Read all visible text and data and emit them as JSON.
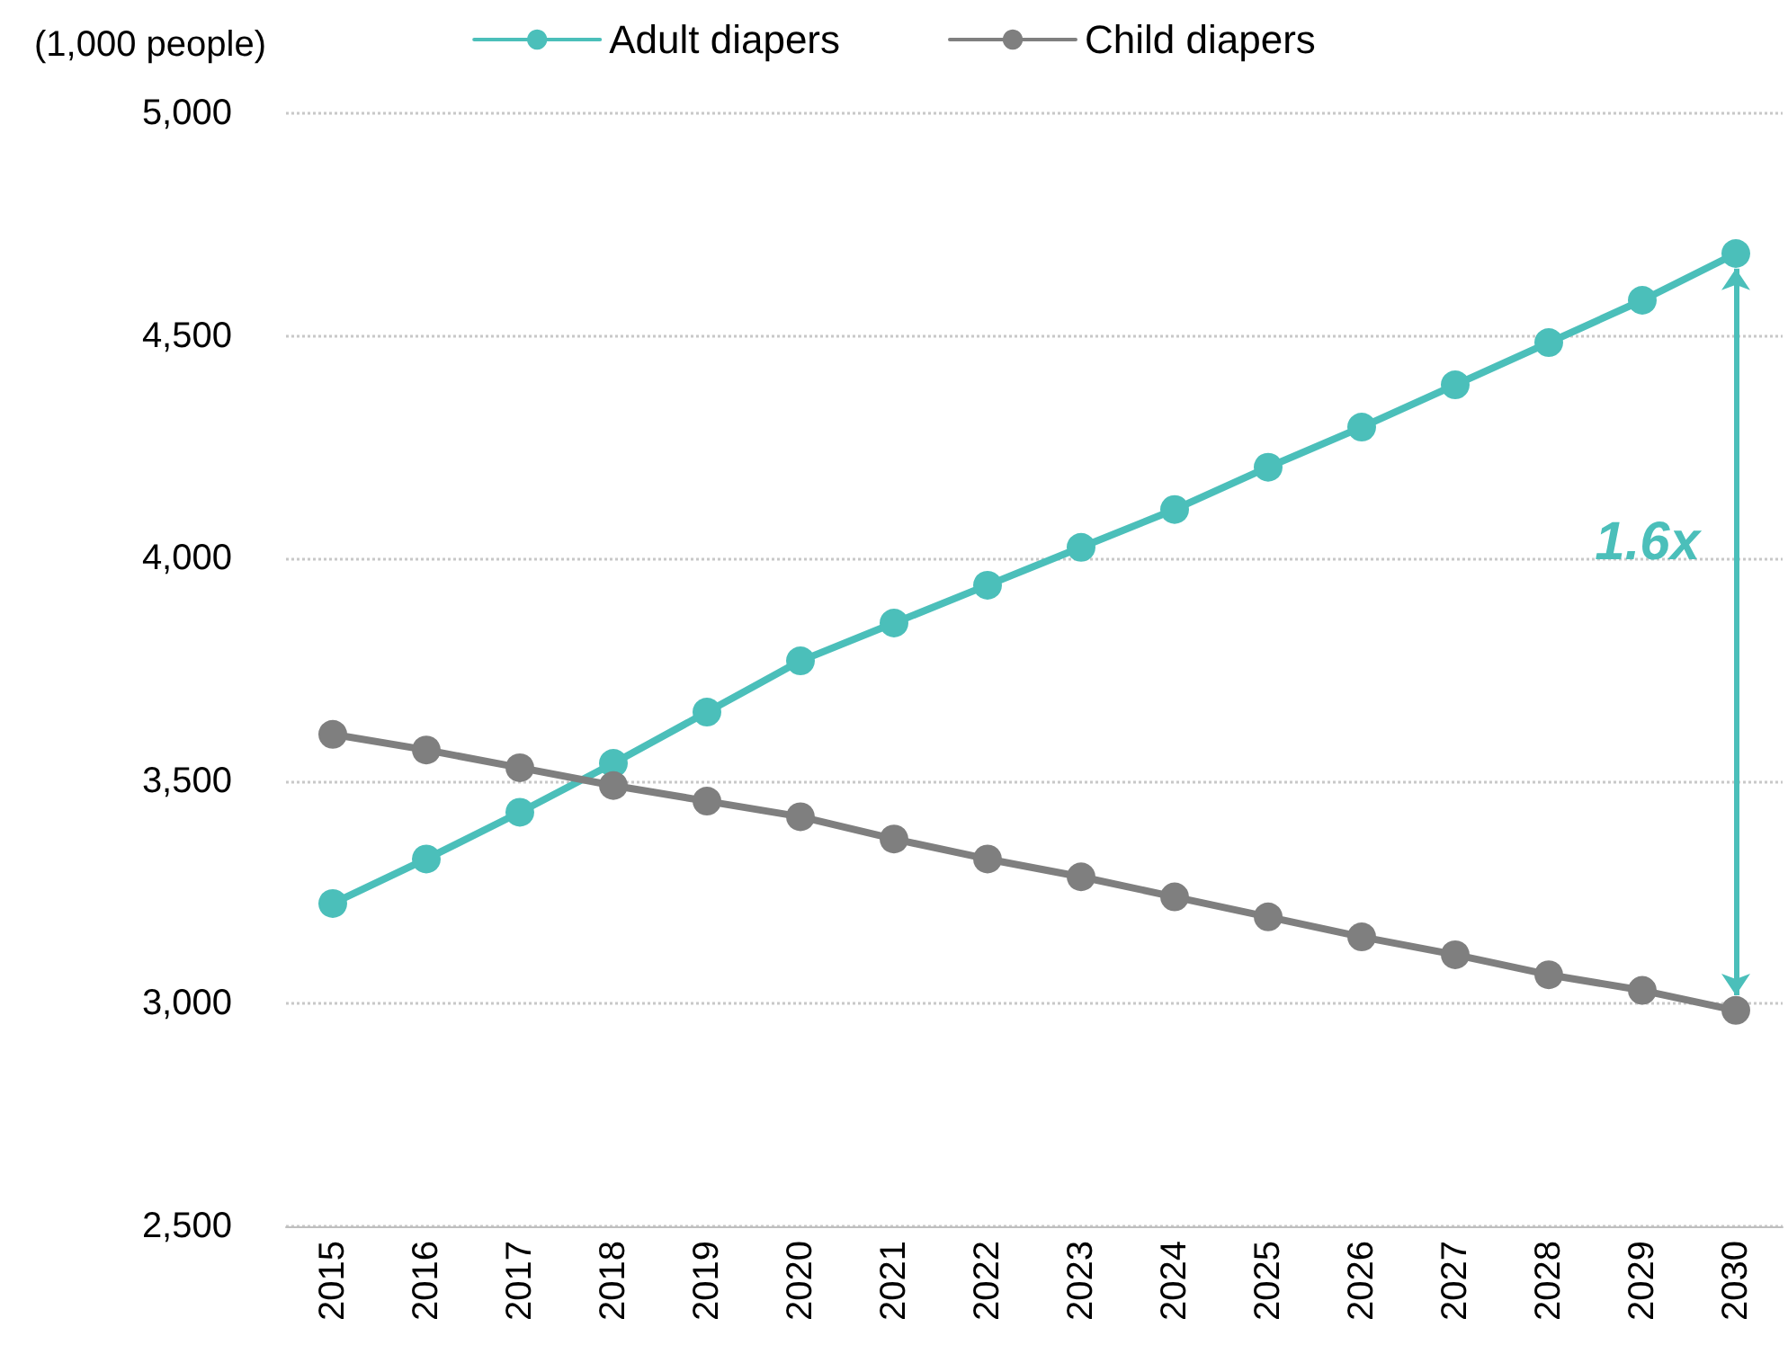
{
  "chart_data": {
    "type": "line",
    "ylabel": "(1,000 people)",
    "categories": [
      "2015",
      "2016",
      "2017",
      "2018",
      "2019",
      "2020",
      "2021",
      "2022",
      "2023",
      "2024",
      "2025",
      "2026",
      "2027",
      "2028",
      "2029",
      "2030"
    ],
    "series": [
      {
        "name": "Adult diapers",
        "color": "#4bbfba",
        "values": [
          3225,
          3325,
          3430,
          3540,
          3655,
          3770,
          3855,
          3940,
          4025,
          4110,
          4205,
          4295,
          4390,
          4485,
          4580,
          4685
        ]
      },
      {
        "name": "Child diapers",
        "color": "#7f7f7f",
        "values": [
          3605,
          3570,
          3530,
          3490,
          3455,
          3420,
          3370,
          3325,
          3285,
          3240,
          3195,
          3150,
          3110,
          3065,
          3030,
          2985
        ]
      }
    ],
    "ylim": [
      2500,
      5000
    ],
    "yticks": [
      {
        "value": 2500,
        "label": "2,500"
      },
      {
        "value": 3000,
        "label": "3,000"
      },
      {
        "value": 3500,
        "label": "3,500"
      },
      {
        "value": 4000,
        "label": "4,000"
      },
      {
        "value": 4500,
        "label": "4,500"
      },
      {
        "value": 5000,
        "label": "5,000"
      }
    ],
    "grid": "y",
    "legend": "top",
    "marker": "circle",
    "line_style": "solid",
    "annotations": [
      "1.6x"
    ]
  }
}
